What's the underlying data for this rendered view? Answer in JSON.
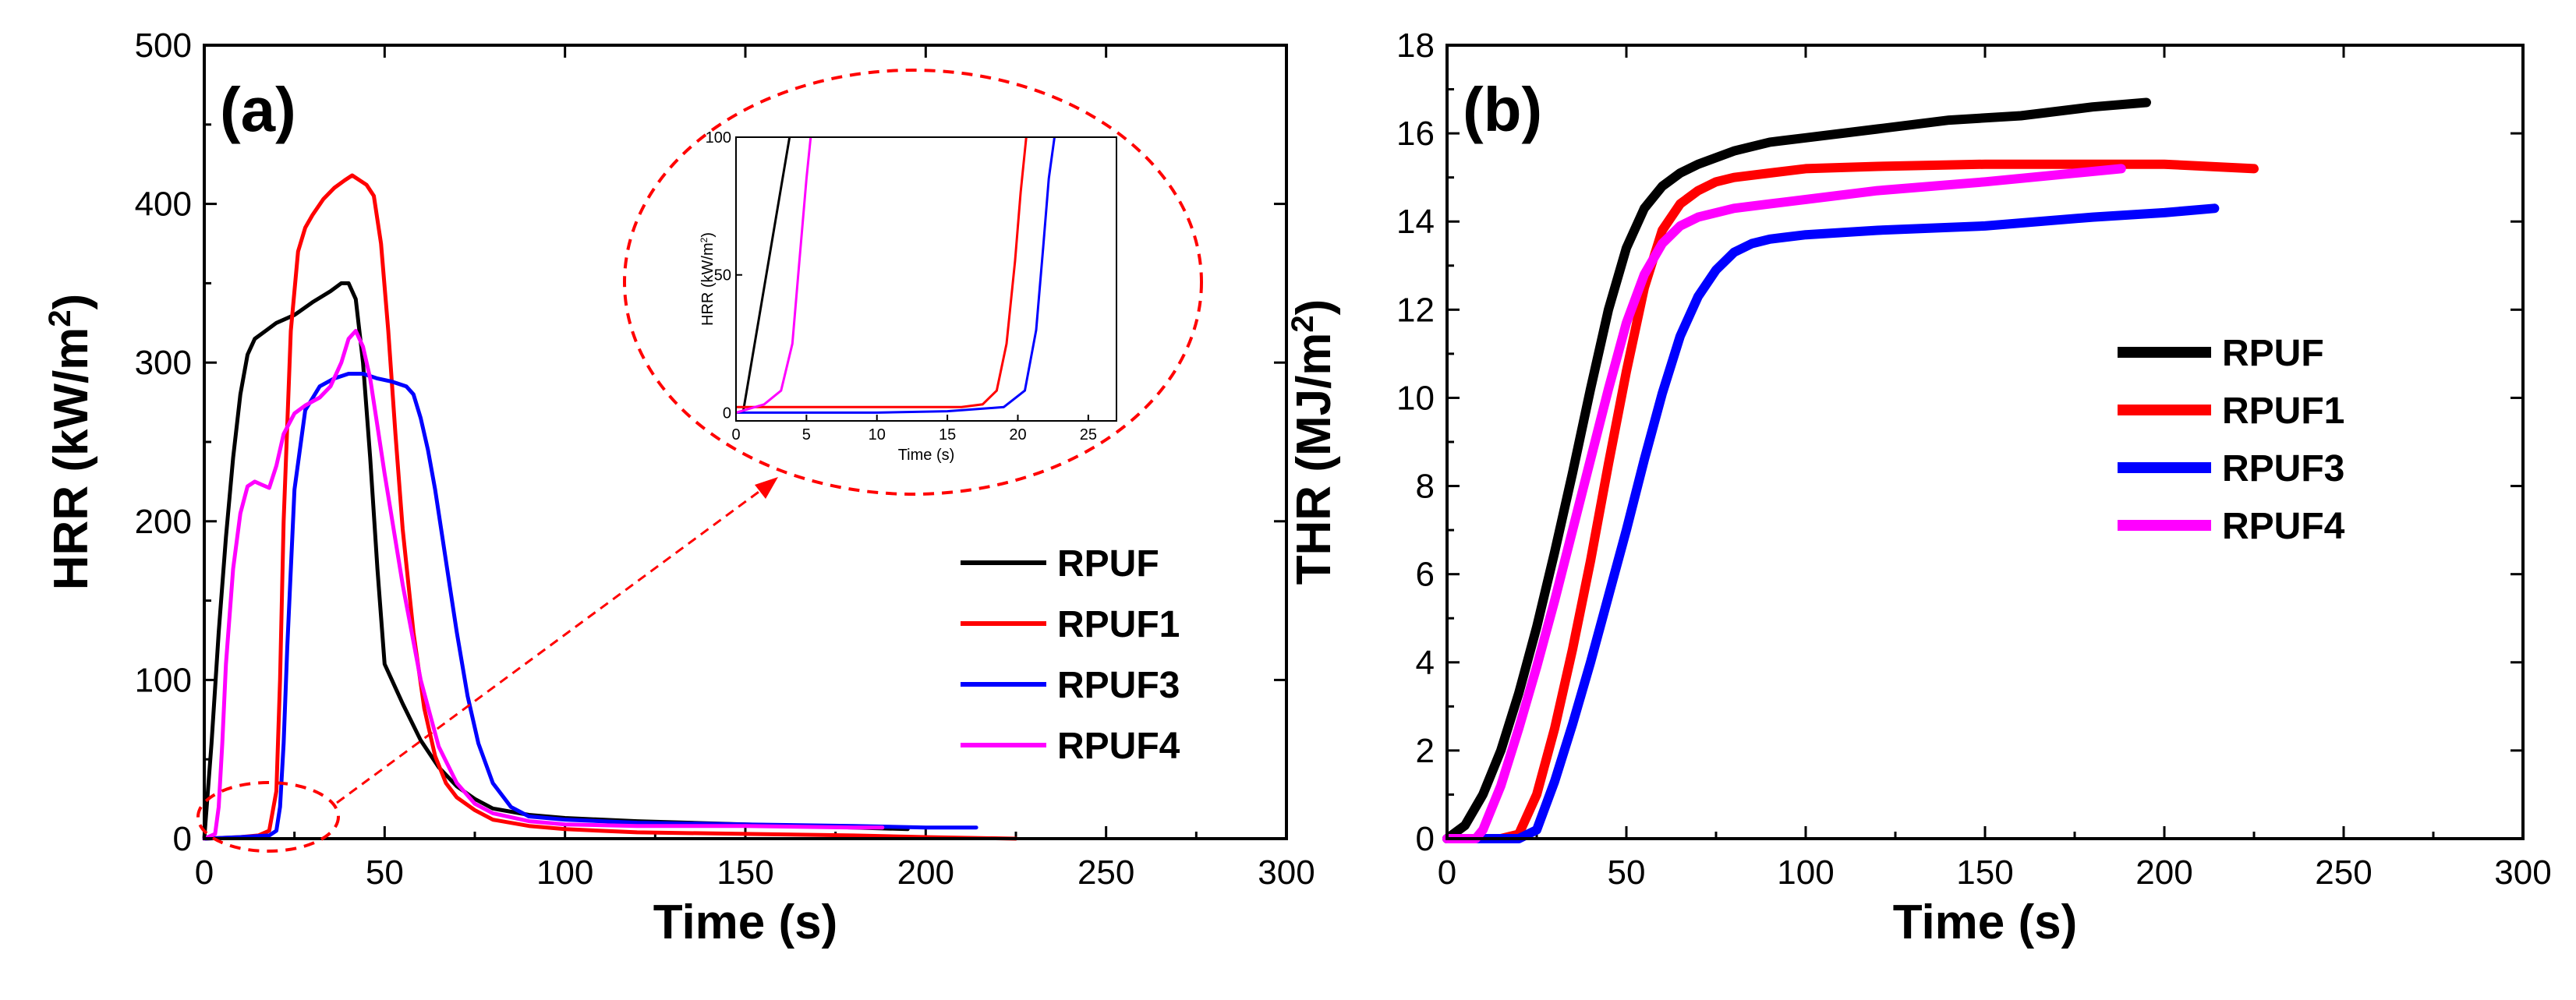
{
  "chart_data": [
    {
      "type": "line",
      "panel_label": "(a)",
      "xlabel": "Time (s)",
      "ylabel": "HRR (kW/m",
      "ylabel_sup": "2",
      "ylabel_end": ")",
      "xlim": [
        0,
        300
      ],
      "ylim": [
        0,
        500
      ],
      "xticks": [
        0,
        50,
        100,
        150,
        200,
        250,
        300
      ],
      "yticks": [
        0,
        100,
        200,
        300,
        400,
        500
      ],
      "legend_position": "center-right",
      "series": [
        {
          "name": "RPUF",
          "color": "#000000",
          "x": [
            0,
            2,
            4,
            6,
            8,
            10,
            12,
            14,
            17,
            20,
            25,
            30,
            35,
            38,
            40,
            42,
            44,
            46,
            48,
            50,
            55,
            60,
            65,
            70,
            75,
            80,
            90,
            100,
            120,
            150,
            180,
            195
          ],
          "y": [
            0,
            60,
            130,
            190,
            240,
            280,
            305,
            315,
            320,
            325,
            330,
            338,
            345,
            350,
            350,
            340,
            300,
            240,
            170,
            110,
            85,
            62,
            45,
            33,
            25,
            19,
            15,
            13,
            11,
            9,
            7,
            6
          ]
        },
        {
          "name": "RPUF1",
          "color": "#ff0000",
          "x": [
            0,
            10,
            15,
            18,
            20,
            21,
            22,
            24,
            26,
            28,
            30,
            33,
            36,
            39,
            41,
            43,
            45,
            47,
            49,
            51,
            53,
            55,
            58,
            61,
            64,
            67,
            70,
            75,
            80,
            90,
            100,
            120,
            150,
            180,
            200,
            225
          ],
          "y": [
            0,
            1,
            2,
            5,
            30,
            100,
            200,
            320,
            370,
            385,
            393,
            403,
            410,
            415,
            418,
            415,
            412,
            405,
            375,
            320,
            255,
            195,
            130,
            82,
            52,
            35,
            26,
            18,
            12,
            8,
            6,
            4,
            3,
            2,
            1,
            0
          ]
        },
        {
          "name": "RPUF3",
          "color": "#0000ff",
          "x": [
            0,
            10,
            18,
            20,
            21,
            22,
            23,
            25,
            28,
            32,
            36,
            40,
            44,
            48,
            52,
            56,
            58,
            60,
            62,
            64,
            66,
            68,
            70,
            73,
            76,
            80,
            85,
            90,
            100,
            120,
            150,
            180,
            200,
            214
          ],
          "y": [
            0,
            1,
            2,
            5,
            20,
            60,
            120,
            220,
            270,
            285,
            290,
            293,
            293,
            290,
            288,
            285,
            280,
            265,
            245,
            220,
            190,
            160,
            130,
            90,
            60,
            35,
            20,
            14,
            12,
            10,
            9,
            8,
            7,
            7
          ]
        },
        {
          "name": "RPUF4",
          "color": "#ff00ff",
          "x": [
            0,
            3,
            4,
            5,
            6,
            8,
            10,
            12,
            14,
            16,
            18,
            20,
            22,
            25,
            28,
            32,
            35,
            38,
            40,
            42,
            44,
            46,
            48,
            50,
            55,
            60,
            65,
            70,
            75,
            80,
            90,
            100,
            120,
            150,
            180,
            188
          ],
          "y": [
            0,
            3,
            20,
            60,
            110,
            170,
            205,
            222,
            225,
            223,
            221,
            235,
            255,
            268,
            273,
            278,
            285,
            300,
            315,
            320,
            310,
            290,
            260,
            230,
            160,
            100,
            58,
            35,
            22,
            16,
            11,
            9,
            8,
            8,
            7,
            7
          ]
        }
      ],
      "inset": {
        "xlabel": "Time (s)",
        "ylabel": "HRR (kW/m",
        "ylabel_sup": "2",
        "ylabel_end": ")",
        "xlim": [
          0,
          27
        ],
        "ylim": [
          -3,
          100
        ],
        "xticks": [
          0,
          5,
          10,
          15,
          20,
          25
        ],
        "yticks": [
          0,
          50,
          100
        ],
        "series": [
          {
            "name": "RPUF",
            "color": "#000000",
            "x": [
              0.5,
              3.8
            ],
            "y": [
              0,
              100
            ]
          },
          {
            "name": "RPUF1",
            "color": "#ff0000",
            "x": [
              0,
              5,
              10,
              16,
              17.5,
              18.5,
              19.2,
              19.8,
              20.2,
              20.6
            ],
            "y": [
              2,
              2,
              2,
              2,
              3,
              8,
              25,
              55,
              80,
              100
            ]
          },
          {
            "name": "RPUF3",
            "color": "#0000ff",
            "x": [
              0,
              5,
              10,
              15,
              19,
              20.5,
              21.3,
              21.8,
              22.2,
              22.6
            ],
            "y": [
              0,
              0,
              0,
              0.5,
              2,
              8,
              30,
              60,
              85,
              100
            ]
          },
          {
            "name": "RPUF4",
            "color": "#ff00ff",
            "x": [
              0,
              2,
              3.2,
              4,
              4.5,
              5,
              5.3
            ],
            "y": [
              0,
              3,
              8,
              25,
              55,
              85,
              100
            ]
          }
        ]
      }
    },
    {
      "type": "line",
      "panel_label": "(b)",
      "xlabel": "Time (s)",
      "ylabel": "THR (MJ/m",
      "ylabel_sup": "2",
      "ylabel_end": ")",
      "xlim": [
        0,
        300
      ],
      "ylim": [
        0,
        18
      ],
      "xticks": [
        0,
        50,
        100,
        150,
        200,
        250,
        300
      ],
      "yticks": [
        0,
        2,
        4,
        6,
        8,
        10,
        12,
        14,
        16,
        18
      ],
      "legend_position": "center-right",
      "series": [
        {
          "name": "RPUF",
          "color": "#000000",
          "x": [
            0,
            5,
            10,
            15,
            20,
            25,
            30,
            35,
            40,
            45,
            50,
            55,
            60,
            65,
            70,
            80,
            90,
            100,
            120,
            140,
            160,
            180,
            195
          ],
          "y": [
            0,
            0.3,
            1.0,
            2.0,
            3.3,
            4.8,
            6.5,
            8.3,
            10.2,
            12.0,
            13.4,
            14.3,
            14.8,
            15.1,
            15.3,
            15.6,
            15.8,
            15.9,
            16.1,
            16.3,
            16.4,
            16.6,
            16.7
          ]
        },
        {
          "name": "RPUF1",
          "color": "#ff0000",
          "x": [
            0,
            15,
            20,
            25,
            30,
            35,
            40,
            45,
            50,
            55,
            60,
            65,
            70,
            75,
            80,
            90,
            100,
            120,
            150,
            180,
            200,
            225
          ],
          "y": [
            0,
            0,
            0.1,
            1.0,
            2.5,
            4.3,
            6.3,
            8.5,
            10.6,
            12.5,
            13.8,
            14.4,
            14.7,
            14.9,
            15.0,
            15.1,
            15.2,
            15.25,
            15.3,
            15.3,
            15.3,
            15.2
          ]
        },
        {
          "name": "RPUF3",
          "color": "#0000ff",
          "x": [
            0,
            20,
            25,
            30,
            35,
            40,
            45,
            50,
            55,
            60,
            65,
            70,
            75,
            80,
            85,
            90,
            100,
            120,
            150,
            180,
            200,
            214
          ],
          "y": [
            0,
            0,
            0.2,
            1.3,
            2.6,
            4.0,
            5.5,
            7.0,
            8.6,
            10.1,
            11.4,
            12.3,
            12.9,
            13.3,
            13.5,
            13.6,
            13.7,
            13.8,
            13.9,
            14.1,
            14.2,
            14.3
          ]
        },
        {
          "name": "RPUF4",
          "color": "#ff00ff",
          "x": [
            0,
            8,
            10,
            15,
            20,
            25,
            30,
            35,
            40,
            45,
            50,
            55,
            60,
            65,
            70,
            75,
            80,
            90,
            100,
            120,
            150,
            188
          ],
          "y": [
            0,
            0,
            0.2,
            1.2,
            2.5,
            3.9,
            5.4,
            7.0,
            8.6,
            10.2,
            11.7,
            12.8,
            13.5,
            13.9,
            14.1,
            14.2,
            14.3,
            14.4,
            14.5,
            14.7,
            14.9,
            15.2
          ]
        }
      ]
    }
  ]
}
